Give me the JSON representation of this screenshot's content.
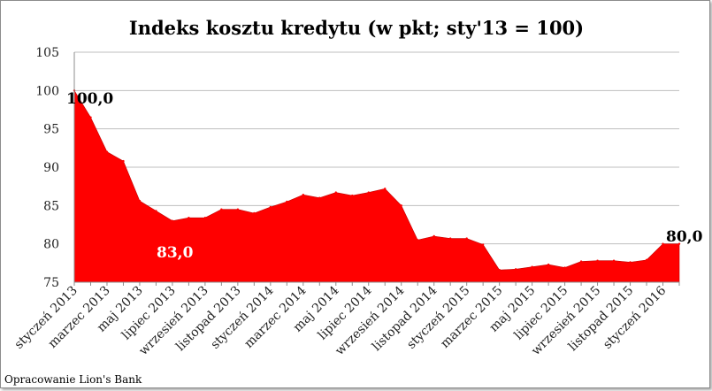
{
  "chart_data": {
    "type": "area",
    "title": "Indeks kosztu kredytu (w pkt; sty'13 = 100)",
    "xlabel": "",
    "ylabel": "",
    "ylim": [
      75,
      105
    ],
    "yticks": [
      75,
      80,
      85,
      90,
      95,
      100,
      105
    ],
    "grid": true,
    "legend": "none",
    "fill_color": "#ff0000",
    "x": [
      "styczeń 2013",
      "luty 2013",
      "marzec 2013",
      "kwiecień 2013",
      "maj 2013",
      "czerwiec 2013",
      "lipiec 2013",
      "sierpień 2013",
      "wrzesień 2013",
      "październik 2013",
      "listopad 2013",
      "grudzień 2013",
      "styczeń 2014",
      "luty 2014",
      "marzec 2014",
      "kwiecień 2014",
      "maj 2014",
      "czerwiec 2014",
      "lipiec 2014",
      "sierpień 2014",
      "wrzesień 2014",
      "październik 2014",
      "listopad 2014",
      "grudzień 2014",
      "styczeń 2015",
      "luty 2015",
      "marzec 2015",
      "kwiecień 2015",
      "maj 2015",
      "czerwiec 2015",
      "lipiec 2015",
      "sierpień 2015",
      "wrzesień 2015",
      "październik 2015",
      "listopad 2015",
      "grudzień 2015",
      "styczeń 2016",
      "luty 2016"
    ],
    "xtick_labels": [
      "styczeń 2013",
      "marzec 2013",
      "maj 2013",
      "lipiec 2013",
      "wrzesień 2013",
      "listopad 2013",
      "styczeń 2014",
      "marzec 2014",
      "maj 2014",
      "lipiec 2014",
      "wrzesień 2014",
      "listopad 2014",
      "styczeń 2015",
      "marzec 2015",
      "maj 2015",
      "lipiec 2015",
      "wrzesień 2015",
      "listopad 2015",
      "styczeń 2016"
    ],
    "values": [
      100.0,
      96.5,
      92.0,
      90.8,
      85.6,
      84.3,
      83.0,
      83.4,
      83.4,
      84.5,
      84.5,
      84.0,
      84.8,
      85.5,
      86.4,
      86.0,
      86.7,
      86.3,
      86.7,
      87.2,
      85.0,
      80.5,
      81.0,
      80.7,
      80.7,
      79.9,
      76.6,
      76.7,
      77.0,
      77.3,
      76.9,
      77.7,
      77.8,
      77.8,
      77.6,
      77.9,
      80.0,
      80.0
    ],
    "data_labels": [
      {
        "text": "100,0"
      },
      {
        "text": "83,0"
      },
      {
        "text": "80,0"
      }
    ]
  },
  "source": "Opracowanie Lion's Bank"
}
